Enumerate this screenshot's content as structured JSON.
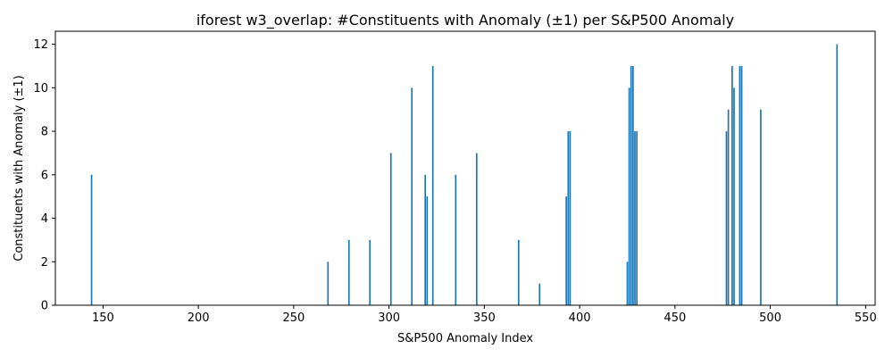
{
  "chart_data": {
    "type": "bar",
    "title": "iforest w3_overlap: #Constituents with Anomaly (±1) per S&P500 Anomaly",
    "xlabel": "S&P500 Anomaly Index",
    "ylabel": "Constituents with Anomaly (±1)",
    "xlim": [
      125,
      555
    ],
    "ylim": [
      0,
      12.6
    ],
    "xticks": [
      150,
      200,
      250,
      300,
      350,
      400,
      450,
      500,
      550
    ],
    "yticks": [
      0,
      2,
      4,
      6,
      8,
      10,
      12
    ],
    "bar_color": "#1f77b4",
    "bar_width": 0.8,
    "x": [
      144,
      268,
      279,
      290,
      301,
      312,
      319,
      320,
      323,
      335,
      346,
      368,
      379,
      393,
      394,
      395,
      425,
      426,
      427,
      428,
      429,
      430,
      477,
      478,
      480,
      481,
      484,
      485,
      495,
      535
    ],
    "values": [
      6,
      2,
      3,
      3,
      7,
      10,
      6,
      5,
      11,
      6,
      7,
      3,
      1,
      5,
      8,
      8,
      2,
      10,
      11,
      11,
      8,
      8,
      8,
      9,
      11,
      10,
      11,
      11,
      9,
      12
    ]
  }
}
